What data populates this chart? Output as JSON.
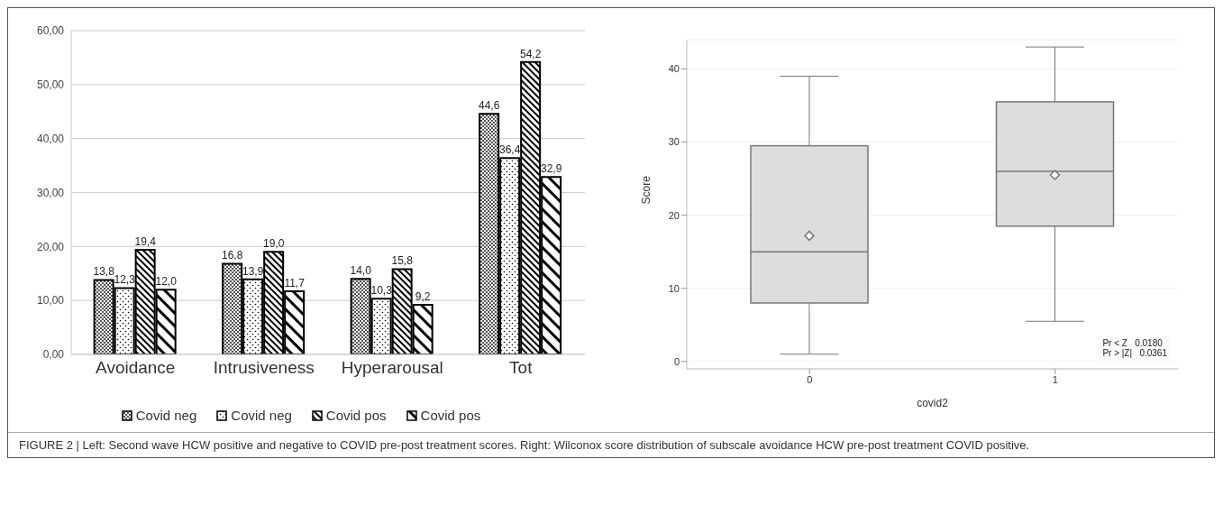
{
  "chart_data": [
    {
      "type": "bar",
      "categories": [
        "Avoidance",
        "Intrusiveness",
        "Hyperarousal",
        "Tot"
      ],
      "series": [
        {
          "name": "Covid neg",
          "color": "#000000",
          "values": [
            13.8,
            16.8,
            14.0,
            44.6
          ],
          "value_labels": [
            "13,8",
            "16,8",
            "14,0",
            "44,6"
          ]
        },
        {
          "name": "Covid neg",
          "color": "#000000",
          "values": [
            12.3,
            13.9,
            10.3,
            36.4
          ],
          "value_labels": [
            "12,3",
            "13,9",
            "10,3",
            "36,4"
          ]
        },
        {
          "name": "Covid pos",
          "color": "#000000",
          "values": [
            19.4,
            19.0,
            15.8,
            54.2
          ],
          "value_labels": [
            "19,4",
            "19,0",
            "15,8",
            "54,2"
          ]
        },
        {
          "name": "Covid pos",
          "color": "#000000",
          "values": [
            12.0,
            11.7,
            9.2,
            32.9
          ],
          "value_labels": [
            "12,0",
            "11,7",
            "9,2",
            "32,9"
          ]
        }
      ],
      "ylim": [
        0,
        60
      ],
      "yticks": [
        {
          "value": 0,
          "label": "0,00"
        },
        {
          "value": 10,
          "label": "10,00"
        },
        {
          "value": 20,
          "label": "20,00"
        },
        {
          "value": 30,
          "label": "30,00"
        },
        {
          "value": 40,
          "label": "40,00"
        },
        {
          "value": 50,
          "label": "50,00"
        },
        {
          "value": 60,
          "label": "60,00"
        }
      ],
      "grid": "y",
      "legend": "bottom",
      "annotations": [
        "FIGURE 2 | Left: Second wave HCW positive and negative to COVID pre-post treatment scores. Right: Wilconox score distribution of subscale avoidance HCW pre-post treatment COVID positive."
      ]
    },
    {
      "type": "box",
      "categories": [
        "0",
        "1"
      ],
      "xlabel": "covid2",
      "ylabel": "Score",
      "boxes": [
        {
          "low": 1,
          "q1": 8,
          "median": 15,
          "q3": 29.5,
          "high": 39,
          "mean": 17.2
        },
        {
          "low": 5.5,
          "q1": 18.5,
          "median": 26,
          "q3": 35.5,
          "high": 43,
          "mean": 25.5
        }
      ],
      "color": "#dddddd",
      "ylim": [
        -1,
        44
      ],
      "yticks": [
        0,
        10,
        20,
        30,
        40
      ],
      "grid": "y",
      "annotations": [
        "Pr < Z   0.0180",
        "Pr > |Z|   0.0361"
      ]
    }
  ]
}
